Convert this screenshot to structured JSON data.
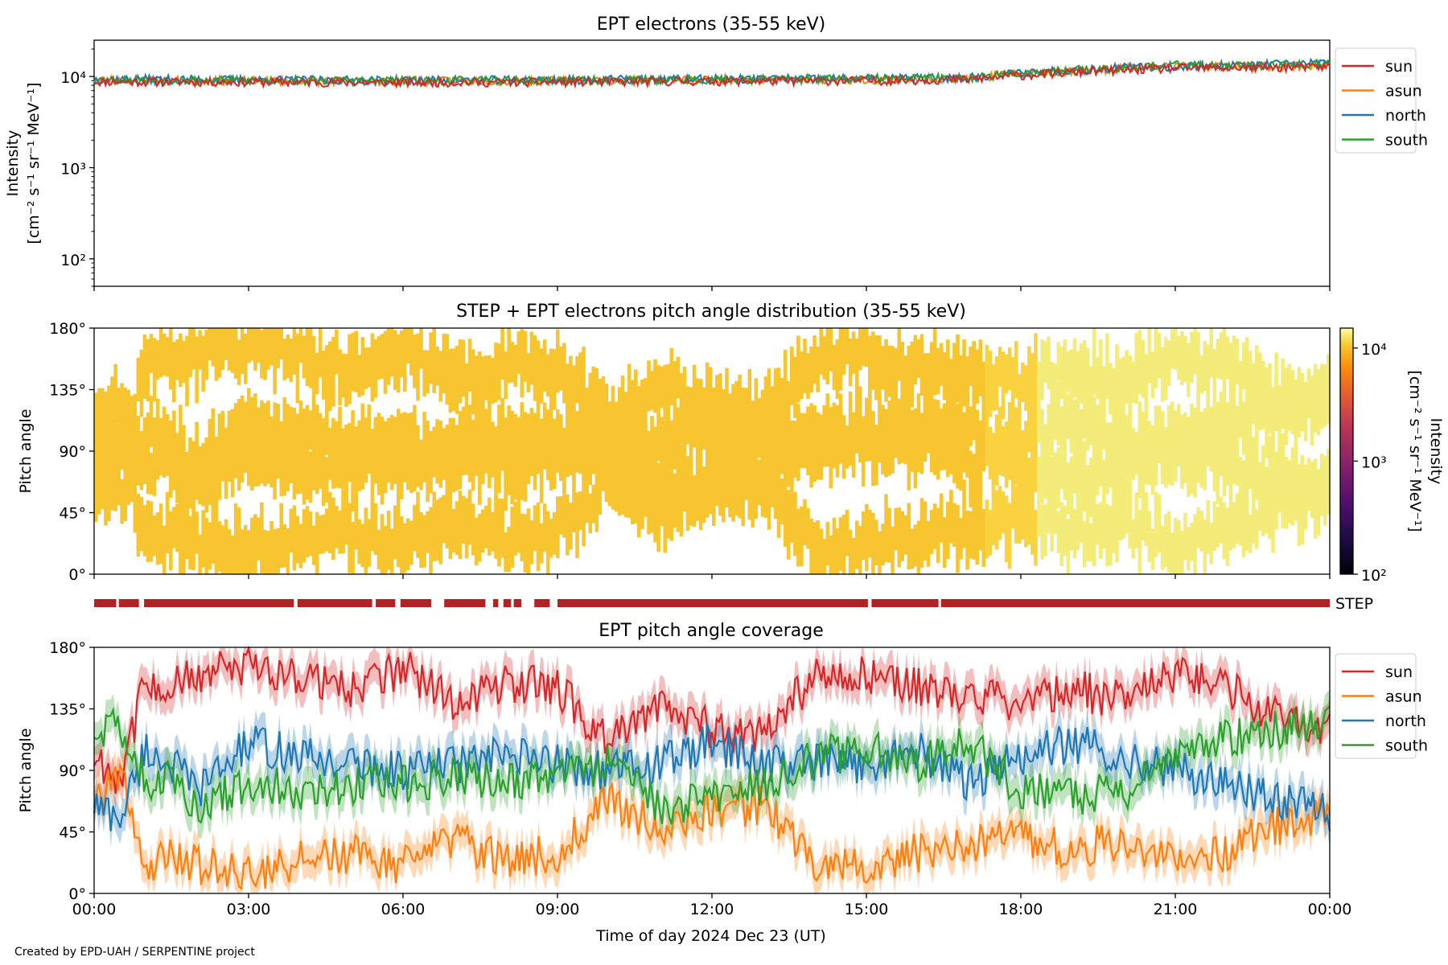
{
  "figure": {
    "credit": "Created by EPD-UAH / SERPENTINE project",
    "xlabel": "Time of day 2024 Dec 23 (UT)",
    "xticks": [
      "00:00",
      "03:00",
      "06:00",
      "09:00",
      "12:00",
      "15:00",
      "18:00",
      "21:00",
      "00:00"
    ],
    "step_label": "STEP",
    "colors": {
      "sun": "#d62728",
      "asun": "#ff7f0e",
      "north": "#1f77b4",
      "south": "#2ca02c",
      "step_bar": "#b22222"
    }
  },
  "chart_data": [
    {
      "type": "line",
      "title": "EPT electrons (35-55 keV)",
      "ylabel": [
        "Intensity",
        "[cm⁻² s⁻¹ sr⁻¹ MeV⁻¹]"
      ],
      "yscale": "log",
      "ylim": [
        50,
        25000
      ],
      "yticks": [
        "10²",
        "10³",
        "10⁴"
      ],
      "x_unit": "hours since 00:00",
      "xlim": [
        0,
        24
      ],
      "legend": [
        "sun",
        "asun",
        "north",
        "south"
      ],
      "legend_position": "right",
      "series": [
        {
          "name": "sun",
          "x": [
            0,
            3,
            6,
            9,
            12,
            15,
            17,
            18,
            19.5,
            21,
            22.5,
            24
          ],
          "values": [
            8800,
            8700,
            8600,
            8700,
            8900,
            9000,
            9300,
            10300,
            11500,
            12300,
            12500,
            12800
          ]
        },
        {
          "name": "asun",
          "x": [
            0,
            3,
            6,
            9,
            12,
            15,
            17,
            18,
            19.5,
            21,
            22.5,
            24
          ],
          "values": [
            9200,
            9000,
            8900,
            9000,
            9200,
            9300,
            9600,
            10700,
            12000,
            13200,
            13000,
            13200
          ]
        },
        {
          "name": "north",
          "x": [
            0,
            3,
            6,
            9,
            12,
            15,
            17,
            18,
            19.5,
            21,
            22.5,
            24
          ],
          "values": [
            9400,
            9200,
            9100,
            9200,
            9400,
            9500,
            9800,
            11000,
            12300,
            13000,
            13400,
            14000
          ]
        },
        {
          "name": "south",
          "x": [
            0,
            3,
            6,
            9,
            12,
            15,
            17,
            18,
            19.5,
            21,
            22.5,
            24
          ],
          "values": [
            9300,
            9100,
            9000,
            9100,
            9300,
            9400,
            9700,
            10900,
            12200,
            13300,
            13200,
            13600
          ]
        }
      ]
    },
    {
      "type": "heatmap",
      "title": "STEP + EPT electrons pitch angle distribution (35-55 keV)",
      "ylabel": "Pitch angle",
      "ylim": [
        0,
        180
      ],
      "yticks": [
        "0°",
        "45°",
        "90°",
        "135°",
        "180°"
      ],
      "xlim": [
        0,
        24
      ],
      "colorbar": {
        "label": [
          "Intensity",
          "[cm⁻² s⁻¹ sr⁻¹ MeV⁻¹]"
        ],
        "scale": "log",
        "range": [
          100,
          15000
        ],
        "ticks": [
          "10²",
          "10³",
          "10⁴"
        ],
        "colormap": "inferno"
      },
      "typical_intensity": [
        [
          0,
          8500
        ],
        [
          17,
          9000
        ],
        [
          19,
          12000
        ],
        [
          24,
          12500
        ]
      ]
    },
    {
      "type": "bar",
      "label": "STEP",
      "description_of_values": "STEP data availability intervals (hours)",
      "intervals": [
        [
          0,
          0.43
        ],
        [
          0.48,
          0.87
        ],
        [
          0.97,
          3.88
        ],
        [
          3.95,
          5.4
        ],
        [
          5.47,
          5.85
        ],
        [
          5.95,
          6.55
        ],
        [
          6.8,
          7.6
        ],
        [
          7.75,
          7.85
        ],
        [
          7.95,
          8.1
        ],
        [
          8.15,
          8.3
        ],
        [
          8.55,
          8.85
        ],
        [
          9.0,
          15.03
        ],
        [
          15.1,
          16.4
        ],
        [
          16.45,
          24
        ]
      ]
    },
    {
      "type": "line",
      "title": "EPT pitch angle coverage",
      "ylabel": "Pitch angle",
      "ylim": [
        0,
        180
      ],
      "yticks": [
        "0°",
        "45°",
        "90°",
        "135°",
        "180°"
      ],
      "xlim": [
        0,
        24
      ],
      "legend": [
        "sun",
        "asun",
        "north",
        "south"
      ],
      "legend_position": "right",
      "series": [
        {
          "name": "sun",
          "x": [
            0,
            0.5,
            1,
            1.5,
            2,
            3,
            4,
            5,
            6,
            7,
            8,
            9,
            10,
            11,
            12,
            13,
            14,
            15,
            16,
            17,
            18,
            19,
            20,
            21,
            22,
            23,
            24
          ],
          "values": [
            100,
            85,
            155,
            150,
            160,
            165,
            160,
            150,
            165,
            140,
            155,
            150,
            110,
            140,
            120,
            115,
            160,
            160,
            150,
            145,
            140,
            150,
            140,
            160,
            150,
            130,
            120
          ]
        },
        {
          "name": "asun",
          "x": [
            0,
            0.5,
            1,
            1.5,
            2,
            3,
            4,
            5,
            6,
            7,
            8,
            9,
            10,
            11,
            12,
            13,
            14,
            15,
            16,
            17,
            18,
            19,
            20,
            21,
            22,
            23,
            24
          ],
          "values": [
            70,
            90,
            20,
            30,
            20,
            15,
            25,
            30,
            20,
            40,
            25,
            30,
            70,
            45,
            60,
            65,
            20,
            20,
            30,
            35,
            40,
            30,
            40,
            20,
            30,
            50,
            60
          ]
        },
        {
          "name": "north",
          "x": [
            0,
            0.5,
            1,
            1.5,
            2,
            3,
            4,
            5,
            6,
            7,
            8,
            9,
            10,
            11,
            12,
            13,
            14,
            15,
            16,
            17,
            18,
            19,
            20,
            21,
            22,
            23,
            24
          ],
          "values": [
            65,
            55,
            105,
            95,
            75,
            110,
            100,
            95,
            90,
            95,
            100,
            95,
            90,
            95,
            110,
            95,
            95,
            95,
            105,
            80,
            100,
            110,
            100,
            90,
            80,
            70,
            60
          ]
        },
        {
          "name": "south",
          "x": [
            0,
            0.5,
            1,
            1.5,
            2,
            3,
            4,
            5,
            6,
            7,
            8,
            9,
            10,
            11,
            12,
            13,
            14,
            15,
            16,
            17,
            18,
            19,
            20,
            21,
            22,
            23,
            24
          ],
          "values": [
            120,
            125,
            80,
            85,
            65,
            80,
            75,
            80,
            80,
            85,
            80,
            85,
            95,
            60,
            70,
            80,
            100,
            105,
            95,
            110,
            75,
            70,
            75,
            100,
            115,
            120,
            130
          ]
        }
      ]
    }
  ]
}
